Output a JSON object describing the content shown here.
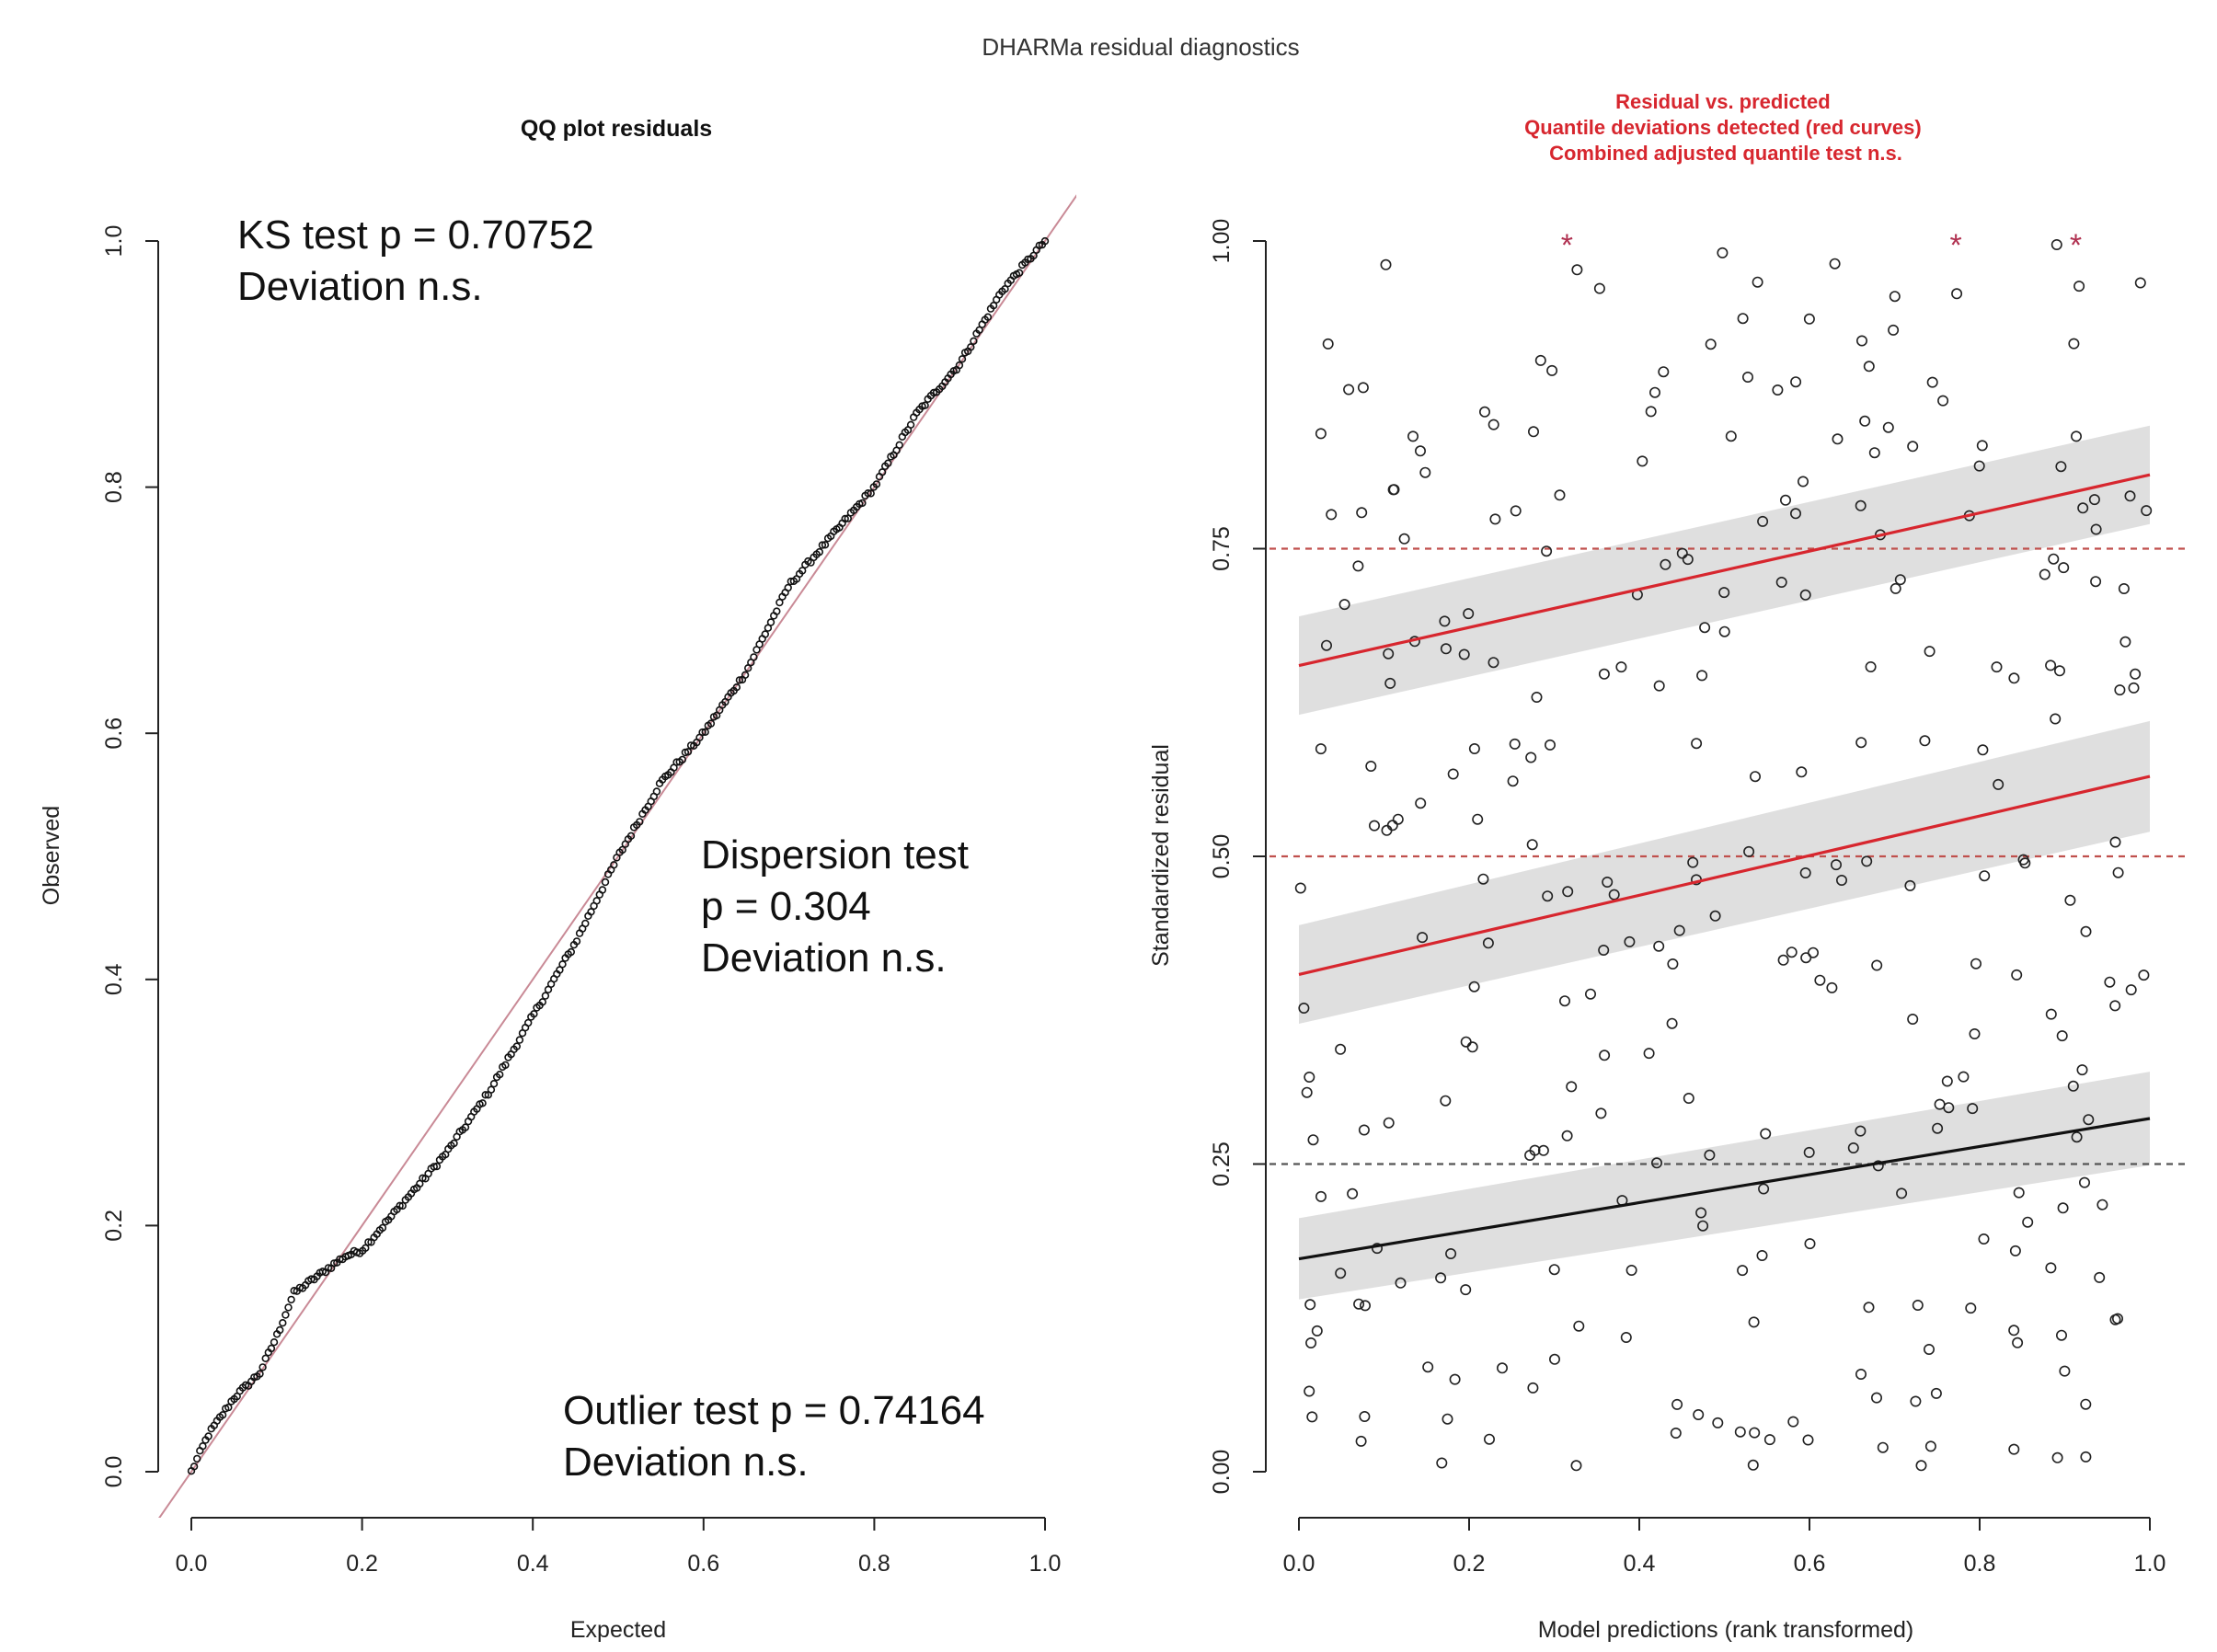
{
  "title": "DHARMa residual diagnostics",
  "chart_data": [
    {
      "type": "scatter",
      "title": "QQ plot residuals",
      "xlabel": "Expected",
      "ylabel": "Observed",
      "xlim": [
        0,
        1
      ],
      "ylim": [
        0,
        1
      ],
      "xticks": [
        "0.0",
        "0.2",
        "0.4",
        "0.6",
        "0.8",
        "1.0"
      ],
      "yticks": [
        "0.0",
        "0.2",
        "0.4",
        "0.6",
        "0.8",
        "1.0"
      ],
      "reference_line": {
        "from": [
          0,
          0
        ],
        "to": [
          1,
          1
        ],
        "color": "#c98a96"
      },
      "qq_curve": {
        "x": [
          0.0,
          0.02,
          0.05,
          0.08,
          0.1,
          0.12,
          0.15,
          0.18,
          0.2,
          0.25,
          0.3,
          0.35,
          0.4,
          0.45,
          0.5,
          0.55,
          0.6,
          0.65,
          0.7,
          0.75,
          0.8,
          0.85,
          0.9,
          0.95,
          1.0
        ],
        "y": [
          0.0,
          0.03,
          0.06,
          0.08,
          0.11,
          0.145,
          0.16,
          0.175,
          0.18,
          0.22,
          0.26,
          0.31,
          0.37,
          0.43,
          0.5,
          0.56,
          0.6,
          0.65,
          0.72,
          0.76,
          0.8,
          0.86,
          0.9,
          0.96,
          1.0
        ],
        "n_points": 300
      },
      "annotations": [
        {
          "name": "ks-test",
          "lines": [
            "KS test  p = 0.70752",
            "Deviation  n.s."
          ]
        },
        {
          "name": "dispersion-test",
          "lines": [
            "Dispersion test",
            "p = 0.304",
            "Deviation  n.s."
          ]
        },
        {
          "name": "outlier-test",
          "lines": [
            "Outlier test  p = 0.74164",
            "Deviation  n.s."
          ]
        }
      ]
    },
    {
      "type": "scatter",
      "title_lines": [
        "Residual vs. predicted",
        "Quantile deviations detected (red curves)",
        "Combined adjusted quantile test n.s."
      ],
      "xlabel": "Model predictions (rank transformed)",
      "ylabel": "Standardized residual",
      "xlim": [
        0,
        1
      ],
      "ylim": [
        0,
        1
      ],
      "xticks": [
        "0.0",
        "0.2",
        "0.4",
        "0.6",
        "0.8",
        "1.0"
      ],
      "yticks": [
        "0.00",
        "0.25",
        "0.50",
        "0.75",
        "1.00"
      ],
      "n_points": 300,
      "reference_lines": [
        {
          "y": 0.25,
          "color": "#555555"
        },
        {
          "y": 0.5,
          "color": "#c0504d"
        },
        {
          "y": 0.75,
          "color": "#c0504d"
        }
      ],
      "quantile_fits": [
        {
          "quantile": 0.25,
          "y0": 0.173,
          "y1": 0.287,
          "band0": 0.033,
          "band1": 0.038,
          "color": "#111111"
        },
        {
          "quantile": 0.5,
          "y0": 0.404,
          "y1": 0.565,
          "band0": 0.04,
          "band1": 0.045,
          "color": "#d7262e"
        },
        {
          "quantile": 0.75,
          "y0": 0.655,
          "y1": 0.81,
          "band0": 0.04,
          "band1": 0.04,
          "color": "#d7262e"
        }
      ],
      "outlier_stars": {
        "x": [
          0.315,
          0.772,
          0.913
        ],
        "y": [
          1.0,
          1.0,
          1.0
        ],
        "symbol": "*"
      }
    }
  ]
}
